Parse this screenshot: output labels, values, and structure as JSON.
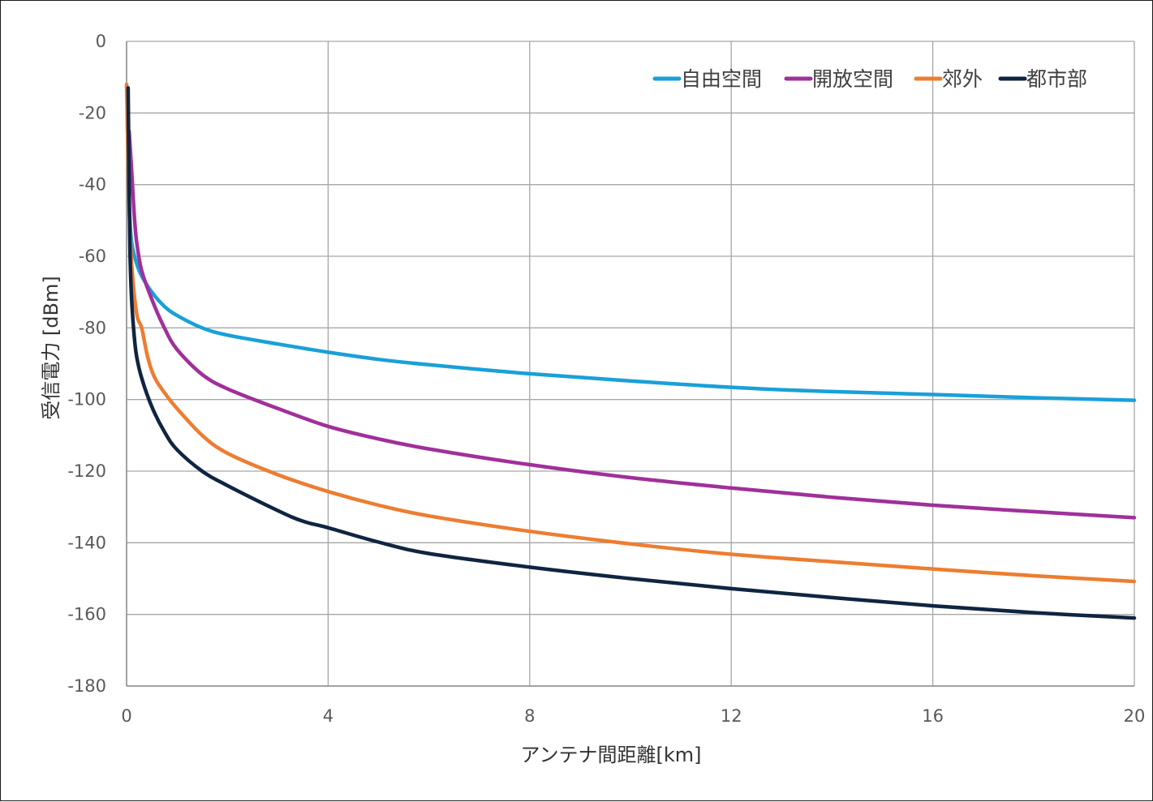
{
  "chart_data": {
    "type": "line",
    "title": "",
    "xlabel": "アンテナ間距離[km]",
    "ylabel": "受信電力 [dBm]",
    "xlim": [
      0,
      20
    ],
    "ylim": [
      -180,
      0
    ],
    "xticks": [
      0,
      4,
      8,
      12,
      16,
      20
    ],
    "yticks": [
      0,
      -20,
      -40,
      -60,
      -80,
      -100,
      -120,
      -140,
      -160,
      -180
    ],
    "grid": true,
    "legend_position": "top-right",
    "series": [
      {
        "name": "自由空間",
        "color": "#1aa0d8",
        "x": [
          0.01,
          0.02,
          0.05,
          0.1,
          0.2,
          0.3,
          0.5,
          0.75,
          1,
          1.5,
          2,
          3,
          4,
          5,
          6,
          8,
          10,
          12,
          14,
          16,
          18,
          20
        ],
        "y": [
          -20,
          -26,
          -45,
          -56,
          -62,
          -65.5,
          -70,
          -74,
          -76.5,
          -80,
          -82,
          -84.5,
          -86.8,
          -88.8,
          -90.3,
          -92.8,
          -94.8,
          -96.6,
          -97.8,
          -98.6,
          -99.5,
          -100.2
        ]
      },
      {
        "name": "開放空間",
        "color": "#a0309a",
        "x": [
          0.05,
          0.1,
          0.15,
          0.2,
          0.3,
          0.5,
          0.75,
          1,
          1.5,
          2,
          3,
          4,
          5,
          6,
          8,
          10,
          12,
          14,
          16,
          18,
          20
        ],
        "y": [
          -25,
          -36,
          -48,
          -56,
          -64,
          -72,
          -80,
          -86,
          -93,
          -97,
          -102.5,
          -107.5,
          -111,
          -113.8,
          -118.2,
          -121.8,
          -124.7,
          -127.3,
          -129.5,
          -131.3,
          -133
        ]
      },
      {
        "name": "郊外",
        "color": "#ed7d31",
        "x": [
          0,
          0.05,
          0.1,
          0.2,
          0.3,
          0.4,
          0.5,
          0.6,
          0.8,
          1,
          1.5,
          2,
          3,
          4,
          5,
          6,
          8,
          10,
          12,
          14,
          16,
          18,
          20
        ],
        "y": [
          -12,
          -45,
          -62,
          -76,
          -80,
          -87,
          -92,
          -95,
          -99,
          -102.5,
          -110,
          -115,
          -121,
          -125.7,
          -129.5,
          -132.5,
          -136.8,
          -140.3,
          -143.2,
          -145.3,
          -147.3,
          -149.2,
          -150.8
        ]
      },
      {
        "name": "都市部",
        "color": "#0f2541",
        "x": [
          0.03,
          0.05,
          0.07,
          0.1,
          0.15,
          0.2,
          0.3,
          0.5,
          0.75,
          1,
          1.5,
          2,
          3,
          3.5,
          4,
          5,
          6,
          8,
          10,
          12,
          14,
          16,
          18,
          20
        ],
        "y": [
          -13,
          -40,
          -60,
          -72,
          -82,
          -88,
          -94,
          -102,
          -109,
          -114,
          -120,
          -124,
          -131,
          -134,
          -135.8,
          -139.8,
          -143,
          -146.8,
          -150,
          -152.8,
          -155.3,
          -157.6,
          -159.5,
          -161
        ]
      }
    ]
  }
}
